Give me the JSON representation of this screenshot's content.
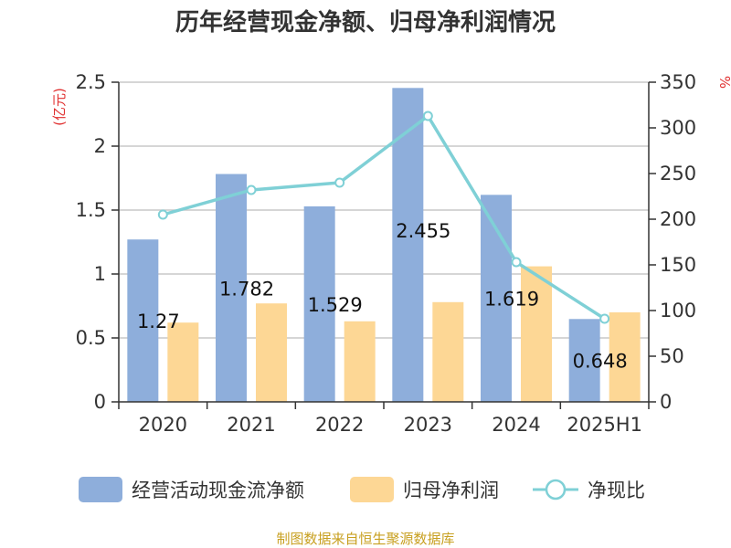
{
  "chart_data": {
    "type": "bar",
    "title": "历年经营现金净额、归母净利润情况",
    "categories": [
      "2020",
      "2021",
      "2022",
      "2023",
      "2024",
      "2025H1"
    ],
    "series": [
      {
        "name": "经营活动现金流净额",
        "kind": "bar",
        "axis": "left",
        "color": "#8eaedb",
        "values": [
          1.27,
          1.782,
          1.529,
          2.455,
          1.619,
          0.648
        ],
        "labels": [
          "1.27",
          "1.782",
          "1.529",
          "2.455",
          "1.619",
          "0.648"
        ]
      },
      {
        "name": "归母净利润",
        "kind": "bar",
        "axis": "left",
        "color": "#fdd795",
        "values": [
          0.62,
          0.77,
          0.63,
          0.78,
          1.06,
          0.7
        ]
      },
      {
        "name": "净现比",
        "kind": "line",
        "axis": "right",
        "color": "#7fd0d6",
        "values": [
          205,
          232,
          240,
          313,
          153,
          91
        ]
      }
    ],
    "y_left": {
      "unit": "(亿元)",
      "ylim": [
        0,
        2.5
      ],
      "ticks": [
        "0",
        "0.5",
        "1",
        "1.5",
        "2",
        "2.5"
      ]
    },
    "y_right": {
      "unit": "%",
      "ylim": [
        0,
        350
      ],
      "ticks": [
        "0",
        "50",
        "100",
        "150",
        "200",
        "250",
        "300",
        "350"
      ]
    },
    "grid": true,
    "legend_position": "bottom"
  },
  "source_text": "制图数据来自恒生聚源数据库"
}
